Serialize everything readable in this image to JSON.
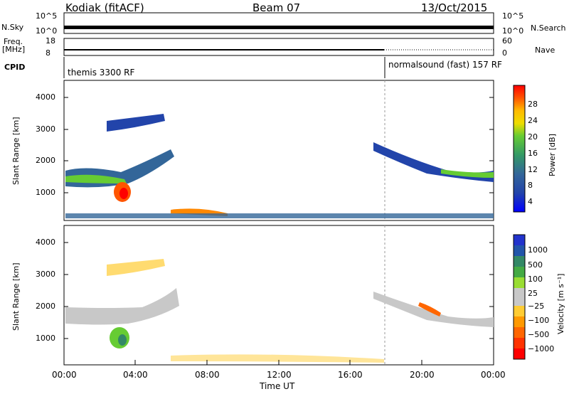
{
  "header": {
    "station": "Kodiak (fitACF)",
    "beam": "Beam 07",
    "date": "13/Oct/2015"
  },
  "top_panels": {
    "nsky_label": "N.Sky",
    "nsearch_label": "N.Search",
    "nsky_ticks": [
      "10^5",
      "10^0"
    ],
    "nsearch_ticks": [
      "10^5",
      "10^0"
    ],
    "freq_label_1": "Freq.",
    "freq_label_2": "[MHz]",
    "freq_ticks": [
      "18",
      "8"
    ],
    "nave_label": "Nave",
    "nave_ticks": [
      "60",
      "0"
    ],
    "cpid_label": "CPID",
    "cpid_left": "themis 3300 RF",
    "cpid_right": "normalsound (fast) 157 RF"
  },
  "chart_data": [
    {
      "type": "heatmap",
      "name": "power-panel",
      "ylabel": "Slant Range [km]",
      "yticks": [
        "4000",
        "3000",
        "2000",
        "1000"
      ],
      "colorbar_label": "Power [dB]",
      "colorbar_ticks": [
        "28",
        "24",
        "20",
        "16",
        "12",
        "8",
        "4"
      ],
      "colorbar_colors": [
        "#ff0000",
        "#ff5500",
        "#ff8800",
        "#ffbb00",
        "#eedd00",
        "#66cc33",
        "#339966",
        "#336699",
        "#2244aa",
        "#0000ff"
      ]
    },
    {
      "type": "heatmap",
      "name": "velocity-panel",
      "ylabel": "Slant Range [km]",
      "yticks": [
        "4000",
        "3000",
        "2000",
        "1000"
      ],
      "colorbar_label": "Velocity [m s⁻¹]",
      "colorbar_ticks": [
        "1000",
        "500",
        "100",
        "25",
        "−25",
        "−100",
        "−500",
        "−1000"
      ],
      "colorbar_colors": [
        "#2233cc",
        "#2255aa",
        "#338866",
        "#44aa44",
        "#99dd33",
        "#c8c8c8",
        "#c8c8c8",
        "#ffcc33",
        "#ff9900",
        "#ff6600",
        "#ff3300",
        "#ff0000"
      ]
    }
  ],
  "xaxis": {
    "ticks": [
      "00:00",
      "04:00",
      "08:00",
      "12:00",
      "16:00",
      "20:00",
      "00:00"
    ],
    "label": "Time UT"
  }
}
